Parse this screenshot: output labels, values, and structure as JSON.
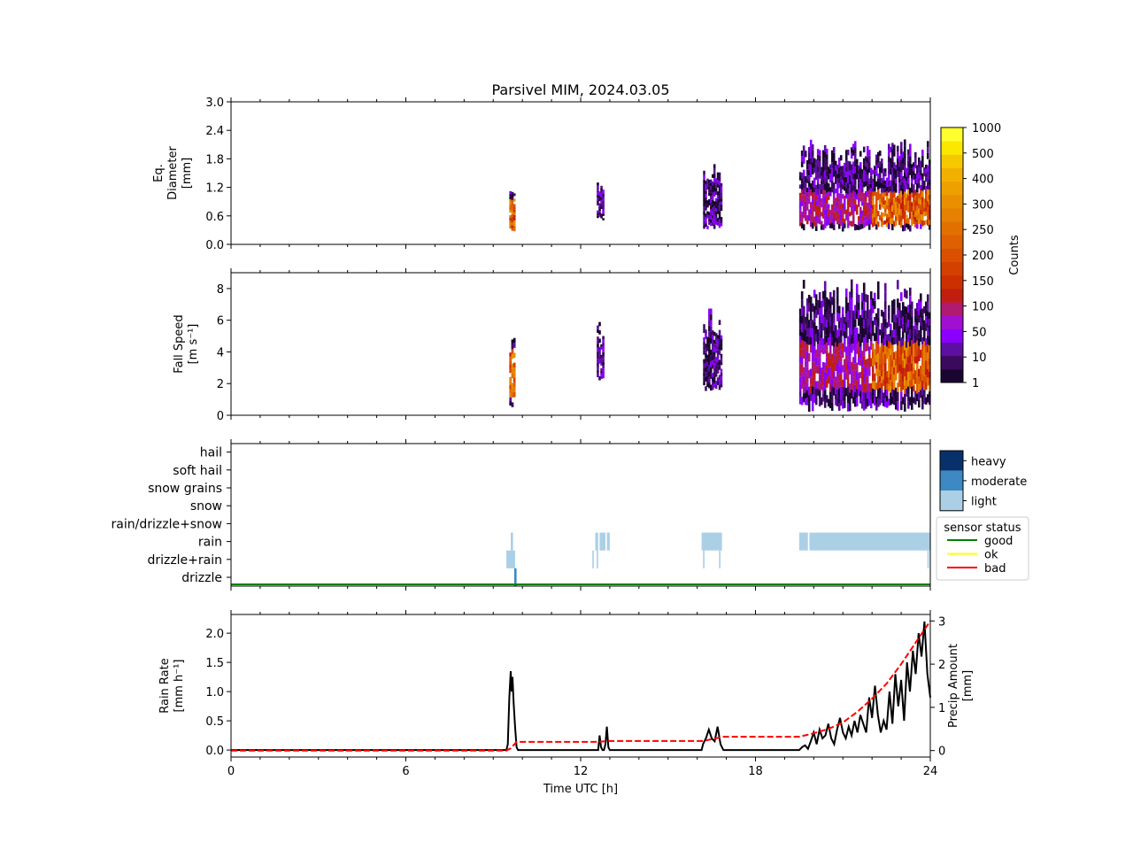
{
  "figure": {
    "title": "Parsivel MIM, 2024.03.05"
  },
  "chart_data": [
    {
      "type": "heatmap",
      "panel": "diameter",
      "ylabel_lines": [
        "Eq.",
        "Diameter",
        "[mm]"
      ],
      "ylim": [
        0,
        3.0
      ],
      "yticks": [
        0.0,
        0.6,
        1.2,
        1.8,
        2.4,
        3.0
      ],
      "ytick_labels": [
        "0.0",
        "0.6",
        "1.2",
        "1.8",
        "2.4",
        "3.0"
      ],
      "xlim": [
        0,
        24
      ],
      "blobs": [
        {
          "t0": 9.55,
          "t1": 9.75,
          "y0": 0.27,
          "y1": 1.12,
          "core": [
            0.3,
            0.95
          ]
        },
        {
          "t0": 12.55,
          "t1": 12.8,
          "y0": 0.5,
          "y1": 1.5,
          "core": null
        },
        {
          "t0": 16.2,
          "t1": 16.85,
          "y0": 0.3,
          "y1": 1.75,
          "core": null
        },
        {
          "t0": 19.5,
          "t1": 24.0,
          "y0": 0.27,
          "y1": 2.25,
          "core": [
            0.4,
            1.1
          ]
        }
      ]
    },
    {
      "type": "heatmap",
      "panel": "fall_speed",
      "ylabel_lines": [
        "Fall Speed",
        "[m s⁻¹]"
      ],
      "ylim": [
        0,
        9.0
      ],
      "yticks": [
        0,
        2,
        4,
        6,
        8
      ],
      "ytick_labels": [
        "0",
        "2",
        "4",
        "6",
        "8"
      ],
      "xlim": [
        0,
        24
      ],
      "blobs": [
        {
          "t0": 9.55,
          "t1": 9.75,
          "y0": 0.3,
          "y1": 5.0,
          "core": [
            1.2,
            4.2
          ]
        },
        {
          "t0": 12.55,
          "t1": 12.8,
          "y0": 2.2,
          "y1": 5.9,
          "core": null
        },
        {
          "t0": 16.2,
          "t1": 16.85,
          "y0": 1.5,
          "y1": 6.8,
          "core": null
        },
        {
          "t0": 19.5,
          "t1": 24.0,
          "y0": 0.2,
          "y1": 8.6,
          "core": [
            1.6,
            4.5
          ]
        }
      ]
    },
    {
      "type": "heatmap",
      "panel": "precip_type",
      "categories": [
        "drizzle",
        "drizzle+rain",
        "rain",
        "rain/drizzle+snow",
        "snow",
        "snow grains",
        "soft hail",
        "hail"
      ],
      "xlim": [
        0,
        24
      ],
      "cells": [
        {
          "category": "rain",
          "t0": 9.6,
          "t1": 9.68,
          "intensity": "light"
        },
        {
          "category": "drizzle+rain",
          "t0": 9.45,
          "t1": 9.75,
          "intensity": "light"
        },
        {
          "category": "drizzle",
          "t0": 9.72,
          "t1": 9.8,
          "intensity": "moderate"
        },
        {
          "category": "rain",
          "t0": 12.5,
          "t1": 12.6,
          "intensity": "light"
        },
        {
          "category": "rain",
          "t0": 12.65,
          "t1": 12.85,
          "intensity": "light"
        },
        {
          "category": "rain",
          "t0": 12.9,
          "t1": 13.0,
          "intensity": "light"
        },
        {
          "category": "drizzle+rain",
          "t0": 12.4,
          "t1": 12.45,
          "intensity": "light"
        },
        {
          "category": "drizzle+rain",
          "t0": 12.55,
          "t1": 12.6,
          "intensity": "light"
        },
        {
          "category": "rain",
          "t0": 16.15,
          "t1": 16.85,
          "intensity": "light"
        },
        {
          "category": "drizzle+rain",
          "t0": 16.2,
          "t1": 16.25,
          "intensity": "light"
        },
        {
          "category": "drizzle+rain",
          "t0": 16.75,
          "t1": 16.8,
          "intensity": "light"
        },
        {
          "category": "rain",
          "t0": 19.5,
          "t1": 19.8,
          "intensity": "light"
        },
        {
          "category": "rain",
          "t0": 19.85,
          "t1": 24.0,
          "intensity": "light"
        },
        {
          "category": "drizzle+rain",
          "t0": 23.9,
          "t1": 23.95,
          "intensity": "light"
        }
      ],
      "intensity_legend": [
        "heavy",
        "moderate",
        "light"
      ],
      "intensity_colors": {
        "heavy": "#08306b",
        "moderate": "#3c89c3",
        "light": "#abd0e6"
      },
      "status_legend": {
        "title": "sensor status",
        "items": [
          {
            "label": "good",
            "color": "#008000"
          },
          {
            "label": "ok",
            "color": "#ffff00"
          },
          {
            "label": "bad",
            "color": "#ff0000"
          }
        ]
      },
      "status_line": {
        "label": "good",
        "t0": 0,
        "t1": 24
      }
    },
    {
      "type": "line",
      "panel": "rain",
      "xlabel": "Time UTC [h]",
      "xlim": [
        0,
        24
      ],
      "xticks": [
        0,
        6,
        12,
        18,
        24
      ],
      "xtick_labels": [
        "0",
        "6",
        "12",
        "18",
        "24"
      ],
      "ylabel_lines": [
        "Rain Rate",
        "[mm h⁻¹]"
      ],
      "ylim": [
        -0.12,
        2.32
      ],
      "yticks": [
        0.0,
        0.5,
        1.0,
        1.5,
        2.0
      ],
      "ytick_labels": [
        "0.0",
        "0.5",
        "1.0",
        "1.5",
        "2.0"
      ],
      "y2label_lines": [
        "Precip Amount",
        "[mm]"
      ],
      "y2lim": [
        -0.15,
        3.15
      ],
      "y2ticks": [
        0,
        1,
        2,
        3
      ],
      "y2tick_labels": [
        "0",
        "1",
        "2",
        "3"
      ],
      "series": [
        {
          "axis": "left",
          "color": "#000000",
          "style": "solid",
          "x": [
            0,
            9.45,
            9.5,
            9.55,
            9.6,
            9.63,
            9.66,
            9.7,
            9.75,
            9.8,
            9.85,
            9.9,
            12.6,
            12.65,
            12.7,
            12.75,
            12.8,
            12.85,
            12.9,
            12.95,
            13.0,
            13.05,
            16.15,
            16.2,
            16.3,
            16.4,
            16.5,
            16.6,
            16.7,
            16.8,
            16.85,
            16.9,
            19.5,
            19.6,
            19.7,
            19.8,
            19.9,
            20.0,
            20.1,
            20.2,
            20.3,
            20.4,
            20.5,
            20.6,
            20.7,
            20.8,
            20.9,
            21.0,
            21.1,
            21.2,
            21.3,
            21.4,
            21.5,
            21.6,
            21.7,
            21.8,
            21.9,
            22.0,
            22.1,
            22.2,
            22.3,
            22.4,
            22.5,
            22.6,
            22.7,
            22.8,
            22.9,
            23.0,
            23.1,
            23.2,
            23.3,
            23.4,
            23.5,
            23.6,
            23.7,
            23.8,
            23.9,
            24.0
          ],
          "y": [
            0,
            0,
            0.1,
            0.9,
            1.35,
            1.0,
            1.25,
            0.8,
            0.4,
            0.05,
            0,
            0,
            0,
            0.25,
            0.05,
            0,
            0,
            0.1,
            0.4,
            0.05,
            0,
            0,
            0,
            0.1,
            0.2,
            0.35,
            0.2,
            0.15,
            0.4,
            0.1,
            0.05,
            0,
            0,
            0.05,
            0.08,
            0.02,
            0.15,
            0.3,
            0.1,
            0.35,
            0.2,
            0.25,
            0.45,
            0.2,
            0.1,
            0.35,
            0.55,
            0.3,
            0.2,
            0.4,
            0.25,
            0.5,
            0.3,
            0.6,
            0.45,
            0.3,
            0.9,
            0.55,
            1.1,
            0.6,
            0.3,
            0.5,
            0.35,
            1.0,
            0.45,
            1.3,
            0.75,
            1.2,
            0.5,
            1.5,
            1.0,
            1.7,
            1.3,
            2.0,
            1.6,
            2.2,
            1.3,
            0.9
          ]
        },
        {
          "axis": "right",
          "color": "#ff0000",
          "style": "dashed",
          "x": [
            0,
            9.45,
            9.6,
            9.8,
            12.5,
            13.0,
            16.2,
            16.9,
            19.5,
            20.0,
            20.5,
            21.0,
            21.5,
            22.0,
            22.5,
            23.0,
            23.5,
            24.0
          ],
          "y": [
            0,
            0,
            0.05,
            0.2,
            0.2,
            0.22,
            0.22,
            0.32,
            0.32,
            0.4,
            0.5,
            0.65,
            0.9,
            1.2,
            1.55,
            2.0,
            2.5,
            3.0
          ]
        }
      ]
    },
    {
      "type": "colorbar",
      "label": "Counts",
      "tick_labels": [
        "1",
        "10",
        "50",
        "100",
        "150",
        "200",
        "250",
        "300",
        "400",
        "500",
        "1000"
      ],
      "colors": [
        "#1a0530",
        "#3a0a5c",
        "#5c0fa0",
        "#8a00ff",
        "#a010d0",
        "#b01a70",
        "#c21e10",
        "#cc3000",
        "#d44000",
        "#da5000",
        "#de6000",
        "#e27000",
        "#e68000",
        "#ea9000",
        "#eea000",
        "#f2b000",
        "#f6c800",
        "#fae800",
        "#ffff30"
      ]
    }
  ]
}
